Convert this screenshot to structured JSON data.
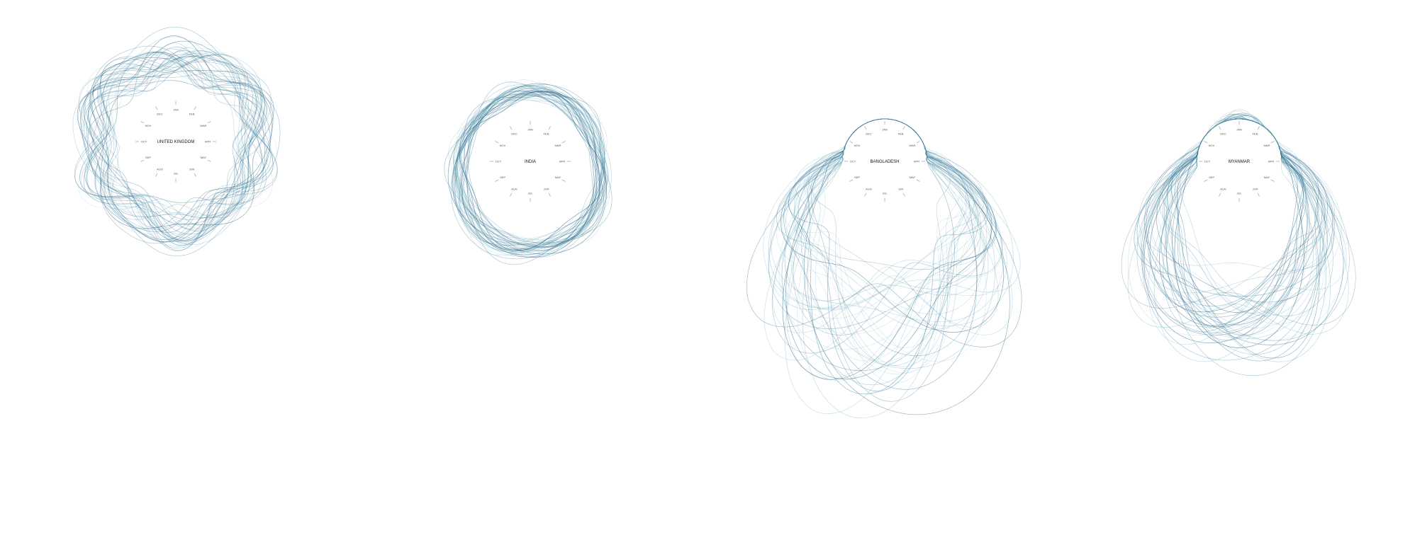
{
  "colors": {
    "line_dark": "#1f5f80",
    "line_mid": "#4b8aa8",
    "line_light": "#8fc3cf",
    "background": "#ffffff"
  },
  "chart_data": [
    {
      "type": "radial-line",
      "country": "UNITED KINGDOM",
      "months": [
        "JAN",
        "FEB",
        "MAR",
        "APR",
        "MAY",
        "JUN",
        "JUL",
        "AUG",
        "SEP",
        "OCT",
        "NOV",
        "DEC"
      ],
      "shape": "round",
      "series_count": 40,
      "intensity": 0.35,
      "spread": 0.18,
      "grid": false,
      "legend": "none"
    },
    {
      "type": "radial-line",
      "country": "INDIA",
      "months": [
        "JAN",
        "FEB",
        "MAR",
        "APR",
        "MAY",
        "JUN",
        "JUL",
        "AUG",
        "SEP",
        "OCT",
        "NOV",
        "DEC"
      ],
      "shape": "egg",
      "series_count": 40,
      "intensity": 0.5,
      "spread": 0.08,
      "grid": false,
      "legend": "none"
    },
    {
      "type": "radial-line",
      "country": "BANGLADESH",
      "months": [
        "JAN",
        "FEB",
        "MAR",
        "APR",
        "MAY",
        "JUN",
        "JUL",
        "AUG",
        "SEP",
        "OCT",
        "NOV",
        "DEC"
      ],
      "shape": "monsoon",
      "series_count": 45,
      "intensity": 1.0,
      "spread": 0.28,
      "grid": false,
      "legend": "none"
    },
    {
      "type": "radial-line",
      "country": "MYANMAR",
      "months": [
        "JAN",
        "FEB",
        "MAR",
        "APR",
        "MAY",
        "JUN",
        "JUL",
        "AUG",
        "SEP",
        "OCT",
        "NOV",
        "DEC"
      ],
      "shape": "monsoon",
      "series_count": 45,
      "intensity": 0.78,
      "spread": 0.2,
      "grid": false,
      "legend": "none"
    }
  ]
}
